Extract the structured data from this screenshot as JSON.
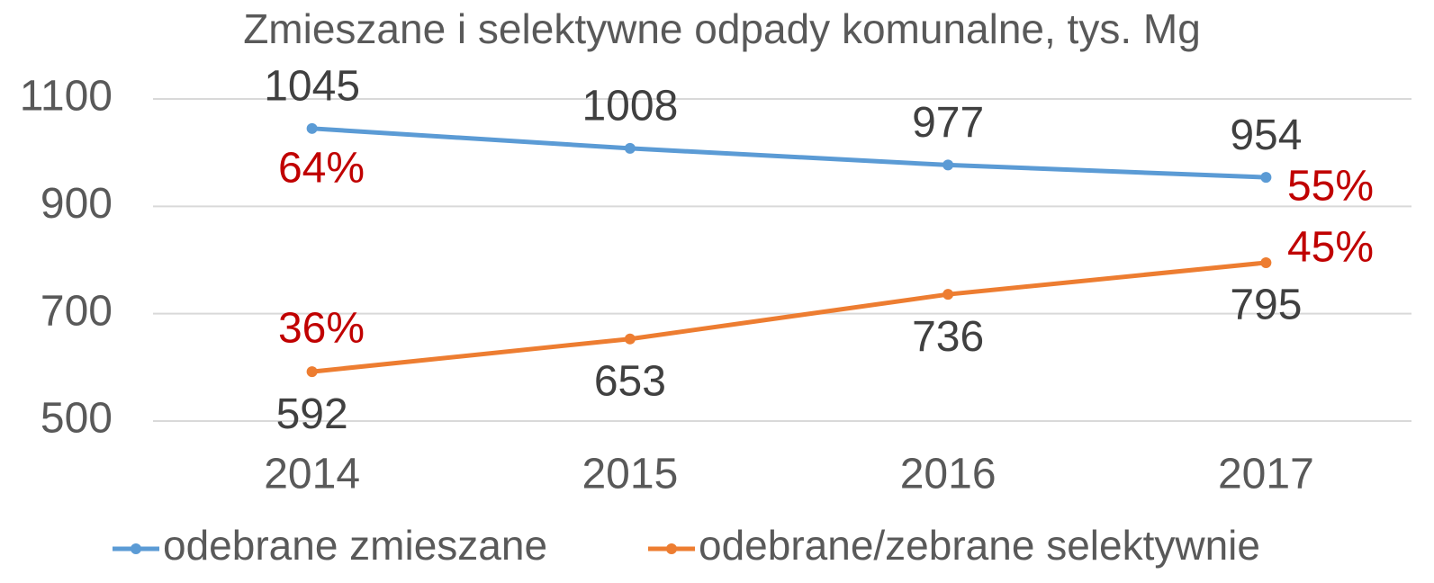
{
  "chart_data": {
    "type": "line",
    "title": "Zmieszane i selektywne odpady komunalne, tys. Mg",
    "categories": [
      "2014",
      "2015",
      "2016",
      "2017"
    ],
    "series": [
      {
        "name": "odebrane zmieszane",
        "color": "#5b9bd5",
        "values": [
          1045,
          1008,
          977,
          954
        ]
      },
      {
        "name": "odebrane/zebrane selektywnie",
        "color": "#ed7d31",
        "values": [
          592,
          653,
          736,
          795
        ]
      }
    ],
    "annotations": [
      "64%",
      "36%",
      "55%",
      "45%"
    ],
    "ylim": [
      500,
      1100
    ],
    "yticks": [
      500,
      700,
      900,
      1100
    ],
    "grid": true,
    "legend": "bottom"
  }
}
